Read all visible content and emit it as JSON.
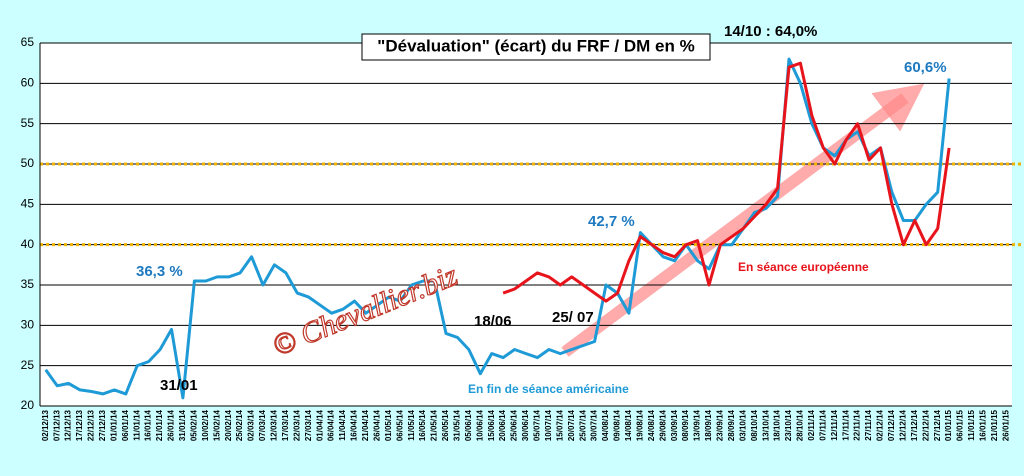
{
  "chart_data": {
    "type": "line",
    "title": "\"Dévaluation\"  (écart) du FRF / DM en %",
    "categories": [
      "02/12/13",
      "07/12/13",
      "12/12/13",
      "17/12/13",
      "22/12/13",
      "27/12/13",
      "01/01/14",
      "06/01/14",
      "11/01/14",
      "16/01/14",
      "21/01/14",
      "26/01/14",
      "31/01/14",
      "05/02/14",
      "10/02/14",
      "15/02/14",
      "20/02/14",
      "25/02/14",
      "02/03/14",
      "07/03/14",
      "12/03/14",
      "17/03/14",
      "22/03/14",
      "27/03/14",
      "01/04/14",
      "06/04/14",
      "11/04/14",
      "16/04/14",
      "21/04/14",
      "26/04/14",
      "01/05/14",
      "06/05/14",
      "11/05/14",
      "16/05/14",
      "21/05/14",
      "26/05/14",
      "31/05/14",
      "05/06/14",
      "10/06/14",
      "15/06/14",
      "20/06/14",
      "25/06/14",
      "30/06/14",
      "05/07/14",
      "10/07/14",
      "15/07/14",
      "20/07/14",
      "25/07/14",
      "30/07/14",
      "04/08/14",
      "09/08/14",
      "14/08/14",
      "19/08/14",
      "24/08/14",
      "29/08/14",
      "03/09/14",
      "08/09/14",
      "13/09/14",
      "18/09/14",
      "23/09/14",
      "28/09/14",
      "03/10/14",
      "08/10/14",
      "13/10/14",
      "18/10/14",
      "23/10/14",
      "28/10/14",
      "02/11/14",
      "07/11/14",
      "12/11/14",
      "17/11/14",
      "22/11/14",
      "27/11/14",
      "02/12/14",
      "07/12/14",
      "12/12/14",
      "17/12/14",
      "22/12/14",
      "27/12/14",
      "01/01/15",
      "06/01/15",
      "11/01/15",
      "16/01/15",
      "21/01/15",
      "26/01/15"
    ],
    "series": [
      {
        "name": "En fin de séance américaine",
        "color": "#1e9ad6",
        "values": [
          24.5,
          22.5,
          22.8,
          22,
          21.8,
          21.5,
          22,
          21.5,
          25,
          25.5,
          27,
          29.5,
          21,
          35.5,
          35.5,
          36,
          36,
          36.5,
          38.5,
          35,
          37.5,
          36.5,
          34,
          33.5,
          32.5,
          31.5,
          32,
          33,
          31.5,
          32.5,
          33.5,
          33,
          35,
          35.5,
          35.5,
          29,
          28.5,
          27,
          24,
          26.5,
          26,
          27,
          26.5,
          26,
          27,
          26.5,
          27,
          27.5,
          28,
          35,
          34,
          31.5,
          41.5,
          40,
          38.5,
          38,
          40,
          38,
          37,
          40,
          40,
          42,
          44,
          44.5,
          46,
          63,
          60,
          55,
          52,
          51,
          53,
          54,
          51,
          52,
          46.5,
          43,
          43,
          45,
          46.5,
          60.6,
          null,
          null,
          null,
          null,
          null
        ]
      },
      {
        "name": "En séance européenne",
        "color": "#e8141c",
        "values": [
          null,
          null,
          null,
          null,
          null,
          null,
          null,
          null,
          null,
          null,
          null,
          null,
          null,
          null,
          null,
          null,
          null,
          null,
          null,
          null,
          null,
          null,
          null,
          null,
          null,
          null,
          null,
          null,
          null,
          null,
          null,
          null,
          null,
          null,
          null,
          null,
          null,
          null,
          null,
          null,
          34,
          34.5,
          35.5,
          36.5,
          36,
          35,
          36,
          35,
          34,
          33,
          34,
          38,
          41,
          40,
          39,
          38.5,
          40,
          40.5,
          35,
          40,
          41,
          42,
          43.5,
          45,
          47,
          62,
          62.5,
          56,
          52,
          50,
          53,
          55,
          50.5,
          52,
          45,
          40,
          43,
          40,
          42,
          52,
          null,
          null,
          null,
          null,
          null
        ]
      }
    ],
    "ylim": [
      20,
      65
    ],
    "yticks": [
      20,
      25,
      30,
      35,
      40,
      45,
      50,
      55,
      60,
      65
    ],
    "grid": true,
    "reference_lines": [
      40,
      50
    ],
    "annotations": [
      "36,3 %",
      "31/01",
      "18/06",
      "25/ 07",
      "42,7 %",
      "14/10 : 64,0%",
      "60,6%"
    ],
    "watermark": "© Chevallier.biz"
  }
}
